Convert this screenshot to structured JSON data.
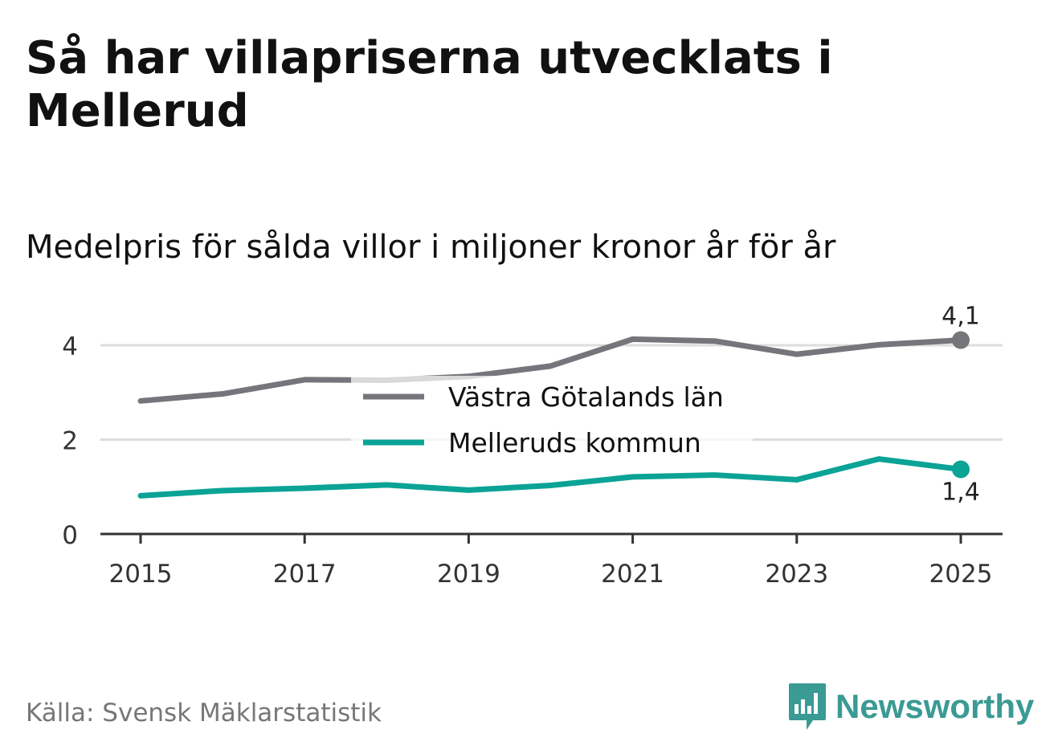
{
  "title": "Så har villapriserna utvecklats i Mellerud",
  "subtitle": "Medelpris för sålda villor i miljoner kronor år för år",
  "source": "Källa: Svensk Mäklarstatistik",
  "brand": {
    "name": "Newsworthy",
    "logo_icon": "bar-chart-speech-bubble-icon",
    "color": "#3a9a94"
  },
  "chart_data": {
    "type": "line",
    "x": [
      2015,
      2016,
      2017,
      2018,
      2019,
      2020,
      2021,
      2022,
      2023,
      2024,
      2025
    ],
    "x_ticks": [
      "2015",
      "2017",
      "2019",
      "2021",
      "2023",
      "2025"
    ],
    "y_ticks": [
      "0",
      "2",
      "4"
    ],
    "ylim": [
      0,
      4.5
    ],
    "series": [
      {
        "name": "Västra Götalands län",
        "color": "#76757b",
        "values": [
          2.82,
          2.97,
          3.27,
          3.26,
          3.34,
          3.56,
          4.13,
          4.09,
          3.81,
          4.01,
          4.11
        ],
        "end_label": "4,1",
        "end_label_position": "above"
      },
      {
        "name": "Melleruds kommun",
        "color": "#0aa396",
        "values": [
          0.81,
          0.92,
          0.97,
          1.04,
          0.93,
          1.03,
          1.21,
          1.25,
          1.15,
          1.59,
          1.37
        ],
        "end_label": "1,4",
        "end_label_position": "below"
      }
    ],
    "legend_position": "center",
    "grid": true
  }
}
